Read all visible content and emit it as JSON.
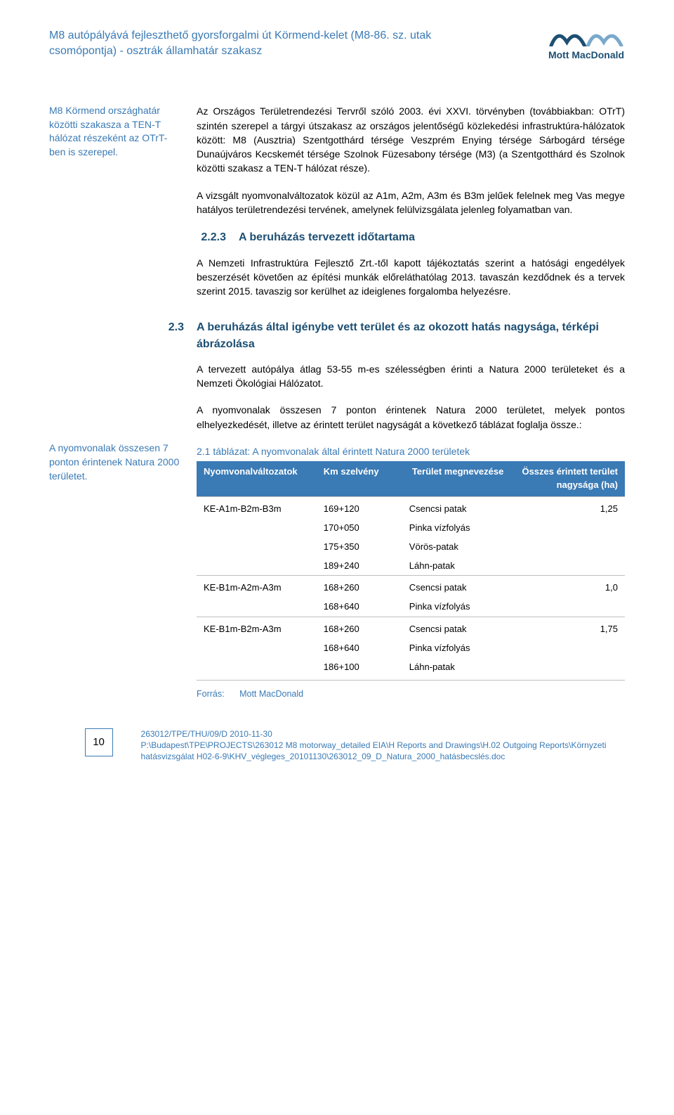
{
  "header": {
    "title": "M8 autópályává fejleszthető gyorsforgalmi út Körmend-kelet (M8-86. sz. utak csomópontja) - osztrák államhatár szakasz",
    "logo_text": "Mott MacDonald"
  },
  "sidebar": {
    "note1": "M8 Körmend országhatár közötti szakasza a TEN-T hálózat részeként az OTrT-ben is szerepel.",
    "note2": "A nyomvonalak összesen 7 ponton érintenek Natura 2000 területet."
  },
  "body": {
    "p1": "Az Országos Területrendezési Tervről szóló 2003. évi XXVI. törvényben (továbbiakban: OTrT) szintén szerepel a tárgyi útszakasz az országos jelentőségű közlekedési infrastruktúra-hálózatok között: M8 (Ausztria) Szentgotthárd térsége Veszprém Enying térsége Sárbogárd térsége Dunaújváros Kecskemét térsége Szolnok Füzesabony térsége (M3) (a Szentgotthárd és Szolnok közötti szakasz a TEN-T hálózat része).",
    "p2": "A vizsgált nyomvonalváltozatok közül az A1m, A2m, A3m és B3m jelűek felelnek meg Vas megye hatályos területrendezési tervének, amelynek felülvizsgálata jelenleg folyamatban van.",
    "s223_num": "2.2.3",
    "s223_title": "A beruházás tervezett időtartama",
    "p3": "A Nemzeti Infrastruktúra Fejlesztő Zrt.-től kapott tájékoztatás szerint a hatósági engedélyek beszerzését követően az építési munkák előreláthatólag 2013. tavaszán kezdődnek és a tervek szerint 2015. tavaszig sor kerülhet az ideiglenes forgalomba helyezésre.",
    "s23_num": "2.3",
    "s23_title": "A beruházás által igénybe vett terület és az okozott hatás nagysága, térképi ábrázolása",
    "p4": "A tervezett autópálya átlag 53-55 m-es szélességben érinti a Natura 2000 területeket és a Nemzeti Ökológiai Hálózatot.",
    "p5": "A nyomvonalak összesen 7 ponton érintenek Natura 2000 területet, melyek pontos elhelyezkedését, illetve az érintett terület nagyságát a következő táblázat foglalja össze.:"
  },
  "table": {
    "caption": "2.1 táblázat: A nyomvonalak által érintett Natura 2000 területek",
    "headers": {
      "c1": "Nyomvonalváltozatok",
      "c2": "Km szelvény",
      "c3": "Terület megnevezése",
      "c4": "Összes érintett terület nagysága (ha)"
    },
    "groups": [
      {
        "variant": "KE-A1m-B2m-B3m",
        "total": "1,25",
        "rows": [
          {
            "km": "169+120",
            "name": "Csencsi patak"
          },
          {
            "km": "170+050",
            "name": "Pinka vízfolyás"
          },
          {
            "km": "175+350",
            "name": "Vörös-patak"
          },
          {
            "km": "189+240",
            "name": "Láhn-patak"
          }
        ]
      },
      {
        "variant": "KE-B1m-A2m-A3m",
        "total": "1,0",
        "rows": [
          {
            "km": "168+260",
            "name": "Csencsi patak"
          },
          {
            "km": "168+640",
            "name": "Pinka vízfolyás"
          }
        ]
      },
      {
        "variant": "KE-B1m-B2m-A3m",
        "total": "1,75",
        "rows": [
          {
            "km": "168+260",
            "name": "Csencsi patak"
          },
          {
            "km": "168+640",
            "name": "Pinka vízfolyás"
          },
          {
            "km": "186+100",
            "name": "Láhn-patak"
          }
        ]
      }
    ],
    "source_label": "Forrás:",
    "source_value": "Mott MacDonald"
  },
  "footer": {
    "page_num": "10",
    "line1": "263012/TPE/THU/09/D 2010-11-30",
    "line2": "P:\\Budapest\\TPE\\PROJECTS\\263012 M8 motorway_detailed EIA\\H Reports and Drawings\\H.02 Outgoing Reports\\Környzeti hatásvizsgálat H02-6-9\\KHV_végleges_20101130\\263012_09_D_Natura_2000_hatásbecslés.doc"
  },
  "colors": {
    "brand_blue": "#3a7ab5",
    "dark_blue": "#1d4f73",
    "table_border": "#bfbfbf",
    "text": "#000000",
    "bg": "#ffffff"
  }
}
